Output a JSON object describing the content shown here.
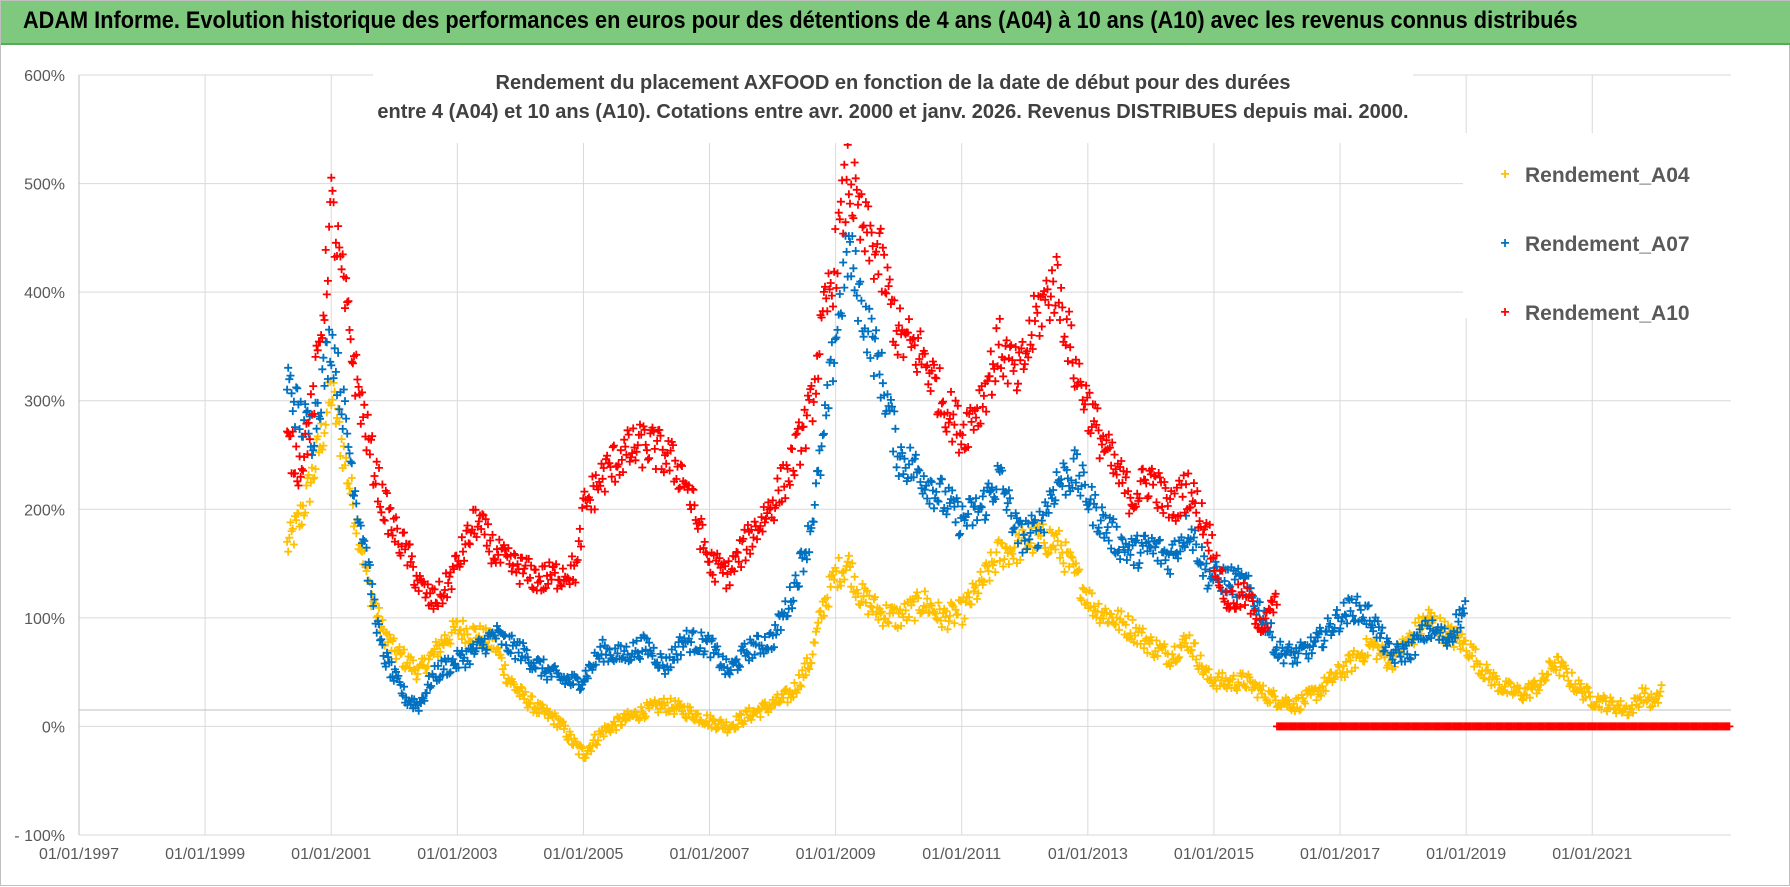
{
  "banner": {
    "title": "ADAM Informe. Evolution historique des performances en euros pour des détentions de 4 ans (A04) à 10 ans (A10) avec les revenus connus distribués"
  },
  "chart_data": {
    "type": "scatter",
    "title_line1": "Rendement du placement AXFOOD en fonction de la date de début pour des durées",
    "title_line2": "entre 4 (A04) et 10 ans (A10).  Cotations entre avr. 2000 et janv. 2026. Revenus DISTRIBUES depuis mai. 2000.",
    "xlabel": "",
    "ylabel": "",
    "x_tick_labels": [
      "01/01/1997",
      "01/01/1999",
      "01/01/2001",
      "01/01/2003",
      "01/01/2005",
      "01/01/2007",
      "01/01/2009",
      "01/01/2011",
      "01/01/2013",
      "01/01/2015",
      "01/01/2017",
      "01/01/2019",
      "01/01/2021"
    ],
    "xlim": [
      1997.0,
      2023.2
    ],
    "y_tick_labels": [
      "- 100%",
      "0%",
      "100%",
      "200%",
      "300%",
      "400%",
      "500%",
      "600%"
    ],
    "y_tick_values": [
      -100,
      0,
      100,
      200,
      300,
      400,
      500,
      600
    ],
    "ylim": [
      -100,
      600
    ],
    "marker": "+",
    "legend_position": "top-right",
    "series": [
      {
        "name": "Rendement_A04",
        "color": "#ffc000",
        "start": 2000.3,
        "end": 2022.1,
        "points": [
          [
            2000.3,
            165
          ],
          [
            2000.5,
            190
          ],
          [
            2000.7,
            230
          ],
          [
            2000.9,
            280
          ],
          [
            2001.0,
            310
          ],
          [
            2001.2,
            250
          ],
          [
            2001.4,
            190
          ],
          [
            2001.6,
            130
          ],
          [
            2001.8,
            90
          ],
          [
            2002.0,
            70
          ],
          [
            2002.2,
            60
          ],
          [
            2002.4,
            50
          ],
          [
            2002.6,
            65
          ],
          [
            2002.8,
            80
          ],
          [
            2003.0,
            90
          ],
          [
            2003.3,
            85
          ],
          [
            2003.6,
            75
          ],
          [
            2003.8,
            45
          ],
          [
            2004.0,
            30
          ],
          [
            2004.3,
            15
          ],
          [
            2004.6,
            5
          ],
          [
            2004.9,
            -20
          ],
          [
            2005.0,
            -25
          ],
          [
            2005.3,
            -5
          ],
          [
            2005.6,
            5
          ],
          [
            2006.0,
            15
          ],
          [
            2006.3,
            20
          ],
          [
            2006.6,
            15
          ],
          [
            2007.0,
            5
          ],
          [
            2007.3,
            0
          ],
          [
            2007.6,
            10
          ],
          [
            2008.0,
            20
          ],
          [
            2008.3,
            30
          ],
          [
            2008.6,
            60
          ],
          [
            2008.8,
            110
          ],
          [
            2009.0,
            140
          ],
          [
            2009.2,
            150
          ],
          [
            2009.4,
            120
          ],
          [
            2009.7,
            105
          ],
          [
            2010.0,
            100
          ],
          [
            2010.4,
            115
          ],
          [
            2010.7,
            100
          ],
          [
            2011.0,
            105
          ],
          [
            2011.3,
            130
          ],
          [
            2011.6,
            160
          ],
          [
            2011.9,
            165
          ],
          [
            2012.2,
            175
          ],
          [
            2012.5,
            170
          ],
          [
            2012.8,
            140
          ],
          [
            2013.1,
            110
          ],
          [
            2013.4,
            100
          ],
          [
            2013.7,
            90
          ],
          [
            2014.0,
            75
          ],
          [
            2014.3,
            65
          ],
          [
            2014.6,
            80
          ],
          [
            2014.9,
            45
          ],
          [
            2015.2,
            40
          ],
          [
            2015.5,
            42
          ],
          [
            2015.8,
            30
          ],
          [
            2016.0,
            25
          ],
          [
            2016.3,
            20
          ],
          [
            2016.6,
            30
          ],
          [
            2016.9,
            45
          ],
          [
            2017.2,
            60
          ],
          [
            2017.5,
            75
          ],
          [
            2017.8,
            60
          ],
          [
            2018.1,
            80
          ],
          [
            2018.4,
            100
          ],
          [
            2018.7,
            85
          ],
          [
            2019.0,
            75
          ],
          [
            2019.3,
            50
          ],
          [
            2019.6,
            35
          ],
          [
            2019.9,
            30
          ],
          [
            2020.2,
            40
          ],
          [
            2020.4,
            60
          ],
          [
            2020.7,
            40
          ],
          [
            2021.0,
            25
          ],
          [
            2021.3,
            20
          ],
          [
            2021.6,
            15
          ],
          [
            2021.8,
            30
          ],
          [
            2022.0,
            20
          ],
          [
            2022.1,
            35
          ]
        ]
      },
      {
        "name": "Rendement_A07",
        "color": "#0070c0",
        "start": 2000.3,
        "end": 2019.0,
        "points": [
          [
            2000.3,
            320
          ],
          [
            2000.5,
            285
          ],
          [
            2000.7,
            270
          ],
          [
            2000.9,
            330
          ],
          [
            2001.0,
            360
          ],
          [
            2001.2,
            290
          ],
          [
            2001.4,
            210
          ],
          [
            2001.6,
            140
          ],
          [
            2001.8,
            70
          ],
          [
            2002.0,
            45
          ],
          [
            2002.2,
            25
          ],
          [
            2002.4,
            20
          ],
          [
            2002.6,
            45
          ],
          [
            2002.8,
            55
          ],
          [
            2003.0,
            60
          ],
          [
            2003.3,
            70
          ],
          [
            2003.6,
            85
          ],
          [
            2003.8,
            75
          ],
          [
            2004.0,
            70
          ],
          [
            2004.3,
            55
          ],
          [
            2004.6,
            45
          ],
          [
            2004.9,
            40
          ],
          [
            2005.0,
            45
          ],
          [
            2005.3,
            70
          ],
          [
            2005.6,
            65
          ],
          [
            2006.0,
            75
          ],
          [
            2006.3,
            55
          ],
          [
            2006.6,
            80
          ],
          [
            2007.0,
            75
          ],
          [
            2007.3,
            50
          ],
          [
            2007.6,
            70
          ],
          [
            2008.0,
            80
          ],
          [
            2008.3,
            120
          ],
          [
            2008.6,
            180
          ],
          [
            2008.8,
            260
          ],
          [
            2009.0,
            360
          ],
          [
            2009.2,
            440
          ],
          [
            2009.4,
            390
          ],
          [
            2009.7,
            330
          ],
          [
            2010.0,
            250
          ],
          [
            2010.4,
            230
          ],
          [
            2010.7,
            210
          ],
          [
            2011.0,
            190
          ],
          [
            2011.3,
            200
          ],
          [
            2011.6,
            230
          ],
          [
            2011.9,
            175
          ],
          [
            2012.2,
            180
          ],
          [
            2012.5,
            225
          ],
          [
            2012.8,
            235
          ],
          [
            2013.1,
            200
          ],
          [
            2013.4,
            175
          ],
          [
            2013.7,
            160
          ],
          [
            2014.0,
            165
          ],
          [
            2014.3,
            155
          ],
          [
            2014.6,
            185
          ],
          [
            2014.9,
            140
          ],
          [
            2015.2,
            135
          ],
          [
            2015.5,
            130
          ],
          [
            2015.8,
            100
          ],
          [
            2016.0,
            70
          ],
          [
            2016.3,
            65
          ],
          [
            2016.6,
            75
          ],
          [
            2016.9,
            95
          ],
          [
            2017.2,
            110
          ],
          [
            2017.5,
            100
          ],
          [
            2017.8,
            65
          ],
          [
            2018.1,
            70
          ],
          [
            2018.4,
            90
          ],
          [
            2018.7,
            80
          ],
          [
            2019.0,
            110
          ]
        ]
      },
      {
        "name": "Rendement_A10",
        "color": "#ff0000",
        "start": 2000.3,
        "end": 2016.0,
        "points": [
          [
            2000.3,
            260
          ],
          [
            2000.5,
            240
          ],
          [
            2000.7,
            290
          ],
          [
            2000.9,
            400
          ],
          [
            2001.0,
            480
          ],
          [
            2001.2,
            400
          ],
          [
            2001.4,
            320
          ],
          [
            2001.6,
            260
          ],
          [
            2001.8,
            210
          ],
          [
            2002.0,
            180
          ],
          [
            2002.2,
            160
          ],
          [
            2002.4,
            130
          ],
          [
            2002.6,
            115
          ],
          [
            2002.8,
            125
          ],
          [
            2003.0,
            150
          ],
          [
            2003.3,
            190
          ],
          [
            2003.6,
            160
          ],
          [
            2003.8,
            150
          ],
          [
            2004.0,
            145
          ],
          [
            2004.3,
            135
          ],
          [
            2004.6,
            140
          ],
          [
            2004.9,
            145
          ],
          [
            2005.0,
            200
          ],
          [
            2005.3,
            230
          ],
          [
            2005.6,
            250
          ],
          [
            2006.0,
            260
          ],
          [
            2006.3,
            250
          ],
          [
            2006.6,
            230
          ],
          [
            2007.0,
            150
          ],
          [
            2007.3,
            140
          ],
          [
            2007.6,
            170
          ],
          [
            2008.0,
            205
          ],
          [
            2008.3,
            240
          ],
          [
            2008.6,
            290
          ],
          [
            2008.8,
            370
          ],
          [
            2009.0,
            430
          ],
          [
            2009.2,
            510
          ],
          [
            2009.4,
            460
          ],
          [
            2009.7,
            430
          ],
          [
            2010.0,
            360
          ],
          [
            2010.4,
            340
          ],
          [
            2010.7,
            300
          ],
          [
            2011.0,
            270
          ],
          [
            2011.3,
            300
          ],
          [
            2011.6,
            350
          ],
          [
            2011.9,
            320
          ],
          [
            2012.2,
            380
          ],
          [
            2012.5,
            410
          ],
          [
            2012.8,
            330
          ],
          [
            2013.1,
            280
          ],
          [
            2013.4,
            240
          ],
          [
            2013.7,
            210
          ],
          [
            2014.0,
            230
          ],
          [
            2014.3,
            200
          ],
          [
            2014.6,
            220
          ],
          [
            2014.9,
            180
          ],
          [
            2015.2,
            115
          ],
          [
            2015.5,
            120
          ],
          [
            2015.8,
            90
          ],
          [
            2016.0,
            120
          ]
        ]
      }
    ],
    "zero_baseline_series": "Rendement_A10",
    "zero_baseline_range": [
      2016.0,
      2023.2
    ]
  }
}
